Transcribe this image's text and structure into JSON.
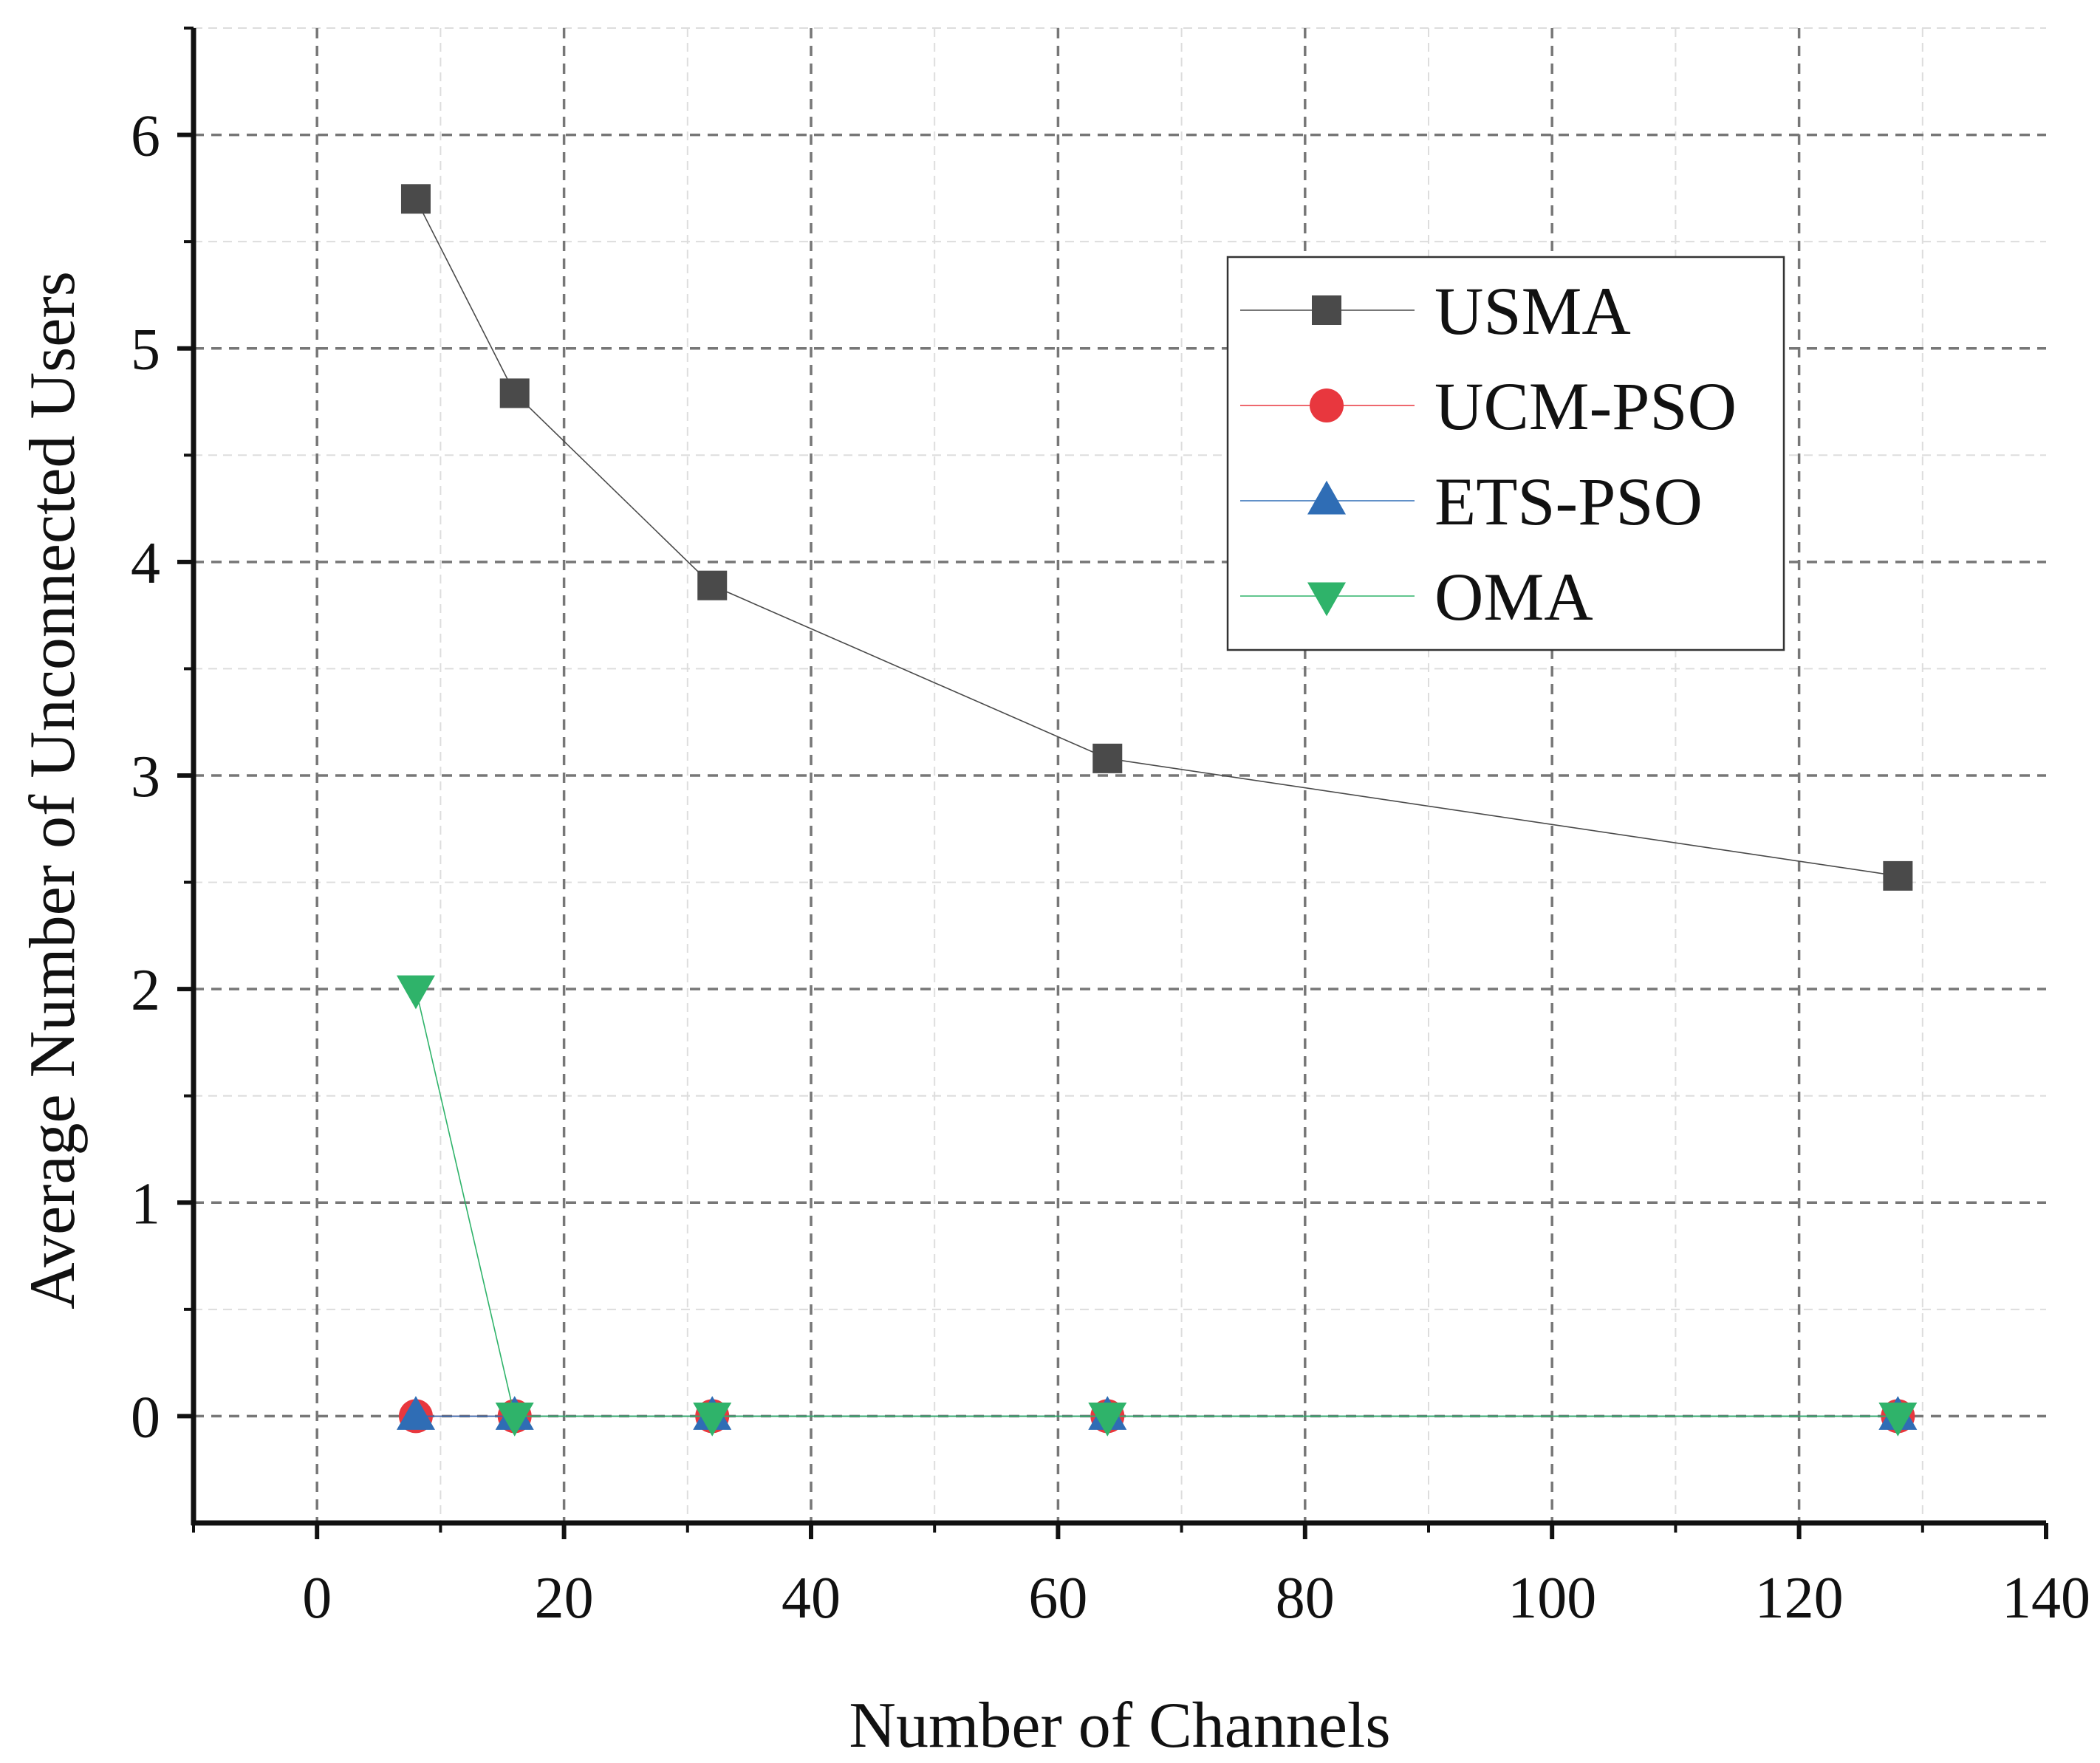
{
  "chart_data": {
    "type": "line",
    "title": "",
    "xlabel": "Number of Channels",
    "ylabel": "Average Number of Unconnected Users",
    "xlim": [
      -10,
      140
    ],
    "ylim": [
      -0.5,
      6.5
    ],
    "xticks": [
      0,
      20,
      40,
      60,
      80,
      100,
      120,
      140
    ],
    "xtick_labels": [
      "0",
      "20",
      "40",
      "60",
      "80",
      "100",
      "120",
      "140"
    ],
    "yticks": [
      0,
      1,
      2,
      3,
      4,
      5,
      6
    ],
    "ytick_labels": [
      "0",
      "1",
      "2",
      "3",
      "4",
      "5",
      "6"
    ],
    "grid": true,
    "legend_position": "upper-right",
    "x": [
      8,
      16,
      32,
      64,
      128
    ],
    "series": [
      {
        "name": "USMA",
        "values": [
          5.7,
          4.79,
          3.89,
          3.08,
          2.53
        ],
        "color": "#4a4a4a",
        "marker": "square"
      },
      {
        "name": "UCM-PSO",
        "values": [
          0,
          0,
          0,
          0,
          0
        ],
        "color": "#e8373e",
        "marker": "circle"
      },
      {
        "name": "ETS-PSO",
        "values": [
          0,
          0,
          0,
          0,
          0
        ],
        "color": "#2f6db5",
        "marker": "triangle-up"
      },
      {
        "name": "OMA",
        "values": [
          2,
          0,
          0,
          0,
          0
        ],
        "color": "#2fb36a",
        "marker": "triangle-down"
      }
    ]
  }
}
